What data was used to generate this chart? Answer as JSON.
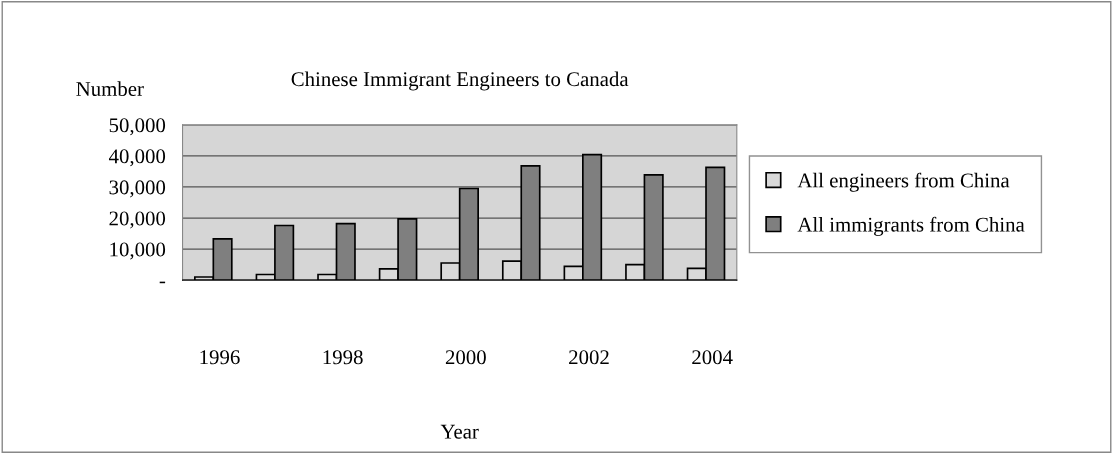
{
  "chart_data": {
    "type": "bar",
    "title": "Chinese Immigrant Engineers to Canada",
    "xlabel": "Year",
    "ylabel": "Number",
    "categories": [
      "1996",
      null,
      "1998",
      null,
      "2000",
      null,
      "2002",
      null,
      "2004"
    ],
    "series": [
      {
        "name": "All engineers from China",
        "color": "#d9d9d9",
        "values": [
          1000,
          1800,
          1800,
          3600,
          5500,
          6100,
          4400,
          5000,
          3800
        ]
      },
      {
        "name": "All immigrants from China",
        "color": "#7f7f7f",
        "values": [
          13300,
          17600,
          18200,
          19700,
          29500,
          36800,
          40400,
          33900,
          36300
        ]
      }
    ],
    "ylim": [
      0,
      50000
    ],
    "yticks": [
      {
        "value": 0,
        "label": "-"
      },
      {
        "value": 10000,
        "label": "10,000"
      },
      {
        "value": 20000,
        "label": "20,000"
      },
      {
        "value": 30000,
        "label": "30,000"
      },
      {
        "value": 40000,
        "label": "40,000"
      },
      {
        "value": 50000,
        "label": "50,000"
      }
    ],
    "grid": "y",
    "legend": "right"
  }
}
